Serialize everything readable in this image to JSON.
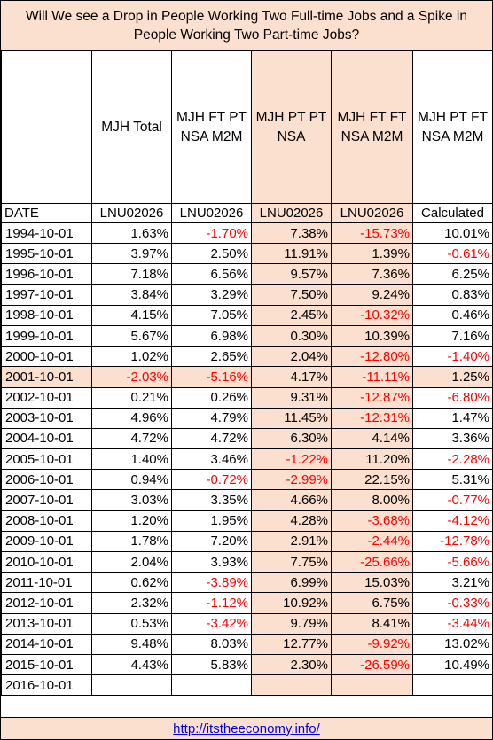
{
  "title": "Will We see a Drop in People Working Two Full-time Jobs and a Spike in People Working Two Part-time Jobs?",
  "headers": [
    "",
    "MJH Total",
    "MJH FT PT NSA M2M",
    "MJH PT PT NSA",
    "MJH FT FT NSA M2M",
    "MJH PT FT NSA M2M"
  ],
  "ids": [
    "DATE",
    "LNU02026",
    "LNU02026",
    "LNU02026",
    "LNU02026",
    "Calculated"
  ],
  "rows": [
    [
      "1994-10-01",
      "1.63%",
      "-1.70%",
      "7.38%",
      "-15.73%",
      "10.01%"
    ],
    [
      "1995-10-01",
      "3.97%",
      "2.50%",
      "11.91%",
      "1.39%",
      "-0.61%"
    ],
    [
      "1996-10-01",
      "7.18%",
      "6.56%",
      "9.57%",
      "7.36%",
      "6.25%"
    ],
    [
      "1997-10-01",
      "3.84%",
      "3.29%",
      "7.50%",
      "9.24%",
      "0.83%"
    ],
    [
      "1998-10-01",
      "4.15%",
      "7.05%",
      "2.45%",
      "-10.32%",
      "0.46%"
    ],
    [
      "1999-10-01",
      "5.67%",
      "6.98%",
      "0.30%",
      "10.39%",
      "7.16%"
    ],
    [
      "2000-10-01",
      "1.02%",
      "2.65%",
      "2.04%",
      "-12.80%",
      "-1.40%"
    ],
    [
      "2001-10-01",
      "-2.03%",
      "-5.16%",
      "4.17%",
      "-11.11%",
      "1.25%"
    ],
    [
      "2002-10-01",
      "0.21%",
      "0.26%",
      "9.31%",
      "-12.87%",
      "-6.80%"
    ],
    [
      "2003-10-01",
      "4.96%",
      "4.79%",
      "11.45%",
      "-12.31%",
      "1.47%"
    ],
    [
      "2004-10-01",
      "4.72%",
      "4.72%",
      "6.30%",
      "4.14%",
      "3.36%"
    ],
    [
      "2005-10-01",
      "1.40%",
      "3.46%",
      "-1.22%",
      "11.20%",
      "-2.28%"
    ],
    [
      "2006-10-01",
      "0.94%",
      "-0.72%",
      "-2.99%",
      "22.15%",
      "5.31%"
    ],
    [
      "2007-10-01",
      "3.03%",
      "3.35%",
      "4.66%",
      "8.00%",
      "-0.77%"
    ],
    [
      "2008-10-01",
      "1.20%",
      "1.95%",
      "4.28%",
      "-3.68%",
      "-4.12%"
    ],
    [
      "2009-10-01",
      "1.78%",
      "7.20%",
      "2.91%",
      "-2.44%",
      "-12.78%"
    ],
    [
      "2010-10-01",
      "2.04%",
      "3.93%",
      "7.75%",
      "-25.66%",
      "-5.66%"
    ],
    [
      "2011-10-01",
      "0.62%",
      "-3.89%",
      "6.99%",
      "15.03%",
      "3.21%"
    ],
    [
      "2012-10-01",
      "2.32%",
      "-1.12%",
      "10.92%",
      "6.75%",
      "-0.33%"
    ],
    [
      "2013-10-01",
      "0.53%",
      "-3.42%",
      "9.79%",
      "8.41%",
      "-3.44%"
    ],
    [
      "2014-10-01",
      "9.48%",
      "8.03%",
      "12.77%",
      "-9.92%",
      "13.02%"
    ],
    [
      "2015-10-01",
      "4.43%",
      "5.83%",
      "2.30%",
      "-26.59%",
      "10.49%"
    ],
    [
      "2016-10-01",
      "",
      "",
      "",
      "",
      ""
    ]
  ],
  "highlight_row_date": "2001-10-01",
  "footer_link": "http://itstheeconomy.info/",
  "colors": {
    "highlight": "#fbe0cf",
    "negative": "#ff0000",
    "link": "#0000ee"
  }
}
